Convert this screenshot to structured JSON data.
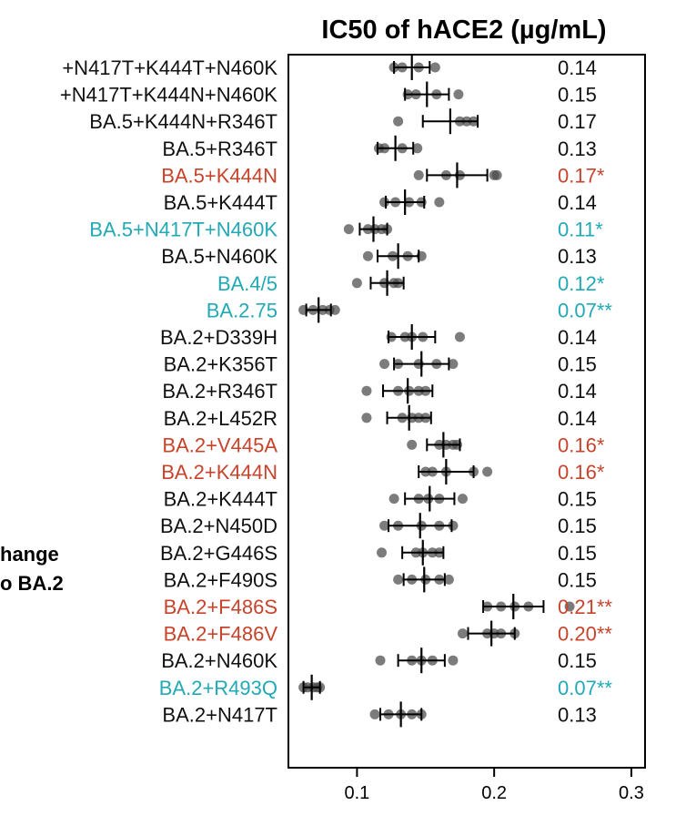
{
  "chart_data": {
    "type": "scatter",
    "title": "IC50 of hACE2 (µg/mL)",
    "side_label_lines": [
      "hange",
      "o BA.2"
    ],
    "xlim": [
      0.05,
      0.31
    ],
    "xticks": [
      0.1,
      0.2,
      0.3
    ],
    "xtick_labels": [
      "0.1",
      "0.2",
      "0.3"
    ],
    "colors": {
      "black": "#111111",
      "red": "#c8432b",
      "cyan": "#22a9b6",
      "point": "#4a4a4a"
    },
    "rows": [
      {
        "label": "+N417T+K444T+N460K",
        "value_label": "0.14",
        "color": "black",
        "mean": 0.14,
        "err": 0.013,
        "points": [
          0.127,
          0.133,
          0.145,
          0.157
        ]
      },
      {
        "label": "+N417T+K444N+N460K",
        "value_label": "0.15",
        "color": "black",
        "mean": 0.151,
        "err": 0.016,
        "points": [
          0.137,
          0.143,
          0.158,
          0.174
        ]
      },
      {
        "label": "BA.5+K444N+R346T",
        "value_label": "0.17",
        "color": "black",
        "mean": 0.168,
        "err": 0.02,
        "points": [
          0.13,
          0.175,
          0.18,
          0.185
        ]
      },
      {
        "label": "BA.5+R346T",
        "value_label": "0.13",
        "color": "black",
        "mean": 0.128,
        "err": 0.013,
        "points": [
          0.116,
          0.12,
          0.133,
          0.144
        ]
      },
      {
        "label": "BA.5+K444N",
        "value_label": "0.17*",
        "color": "red",
        "mean": 0.173,
        "err": 0.022,
        "points": [
          0.145,
          0.165,
          0.175,
          0.2,
          0.202
        ]
      },
      {
        "label": "BA.5+K444T",
        "value_label": "0.14",
        "color": "black",
        "mean": 0.135,
        "err": 0.014,
        "points": [
          0.12,
          0.128,
          0.138,
          0.147,
          0.16
        ]
      },
      {
        "label": "BA.5+N417T+N460K",
        "value_label": "0.11*",
        "color": "cyan",
        "mean": 0.112,
        "err": 0.01,
        "points": [
          0.094,
          0.108,
          0.113,
          0.118,
          0.122
        ]
      },
      {
        "label": "BA.5+N460K",
        "value_label": "0.13",
        "color": "black",
        "mean": 0.13,
        "err": 0.015,
        "points": [
          0.108,
          0.126,
          0.137,
          0.147
        ]
      },
      {
        "label": "BA.4/5",
        "value_label": "0.12*",
        "color": "cyan",
        "mean": 0.122,
        "err": 0.012,
        "points": [
          0.1,
          0.12,
          0.127,
          0.13
        ]
      },
      {
        "label": "BA.2.75",
        "value_label": "0.07**",
        "color": "cyan",
        "mean": 0.072,
        "err": 0.009,
        "points": [
          0.061,
          0.068,
          0.075,
          0.08,
          0.084
        ]
      },
      {
        "label": "BA.2+D339H",
        "value_label": "0.14",
        "color": "black",
        "mean": 0.14,
        "err": 0.017,
        "points": [
          0.125,
          0.135,
          0.14,
          0.148,
          0.175
        ]
      },
      {
        "label": "BA.2+K356T",
        "value_label": "0.15",
        "color": "black",
        "mean": 0.147,
        "err": 0.02,
        "points": [
          0.12,
          0.13,
          0.145,
          0.158,
          0.17
        ]
      },
      {
        "label": "BA.2+R346T",
        "value_label": "0.14",
        "color": "black",
        "mean": 0.137,
        "err": 0.018,
        "points": [
          0.107,
          0.13,
          0.138,
          0.145,
          0.15
        ]
      },
      {
        "label": "BA.2+L452R",
        "value_label": "0.14",
        "color": "black",
        "mean": 0.138,
        "err": 0.016,
        "points": [
          0.107,
          0.133,
          0.14,
          0.145,
          0.15
        ]
      },
      {
        "label": "BA.2+V445A",
        "value_label": "0.16*",
        "color": "red",
        "mean": 0.163,
        "err": 0.012,
        "points": [
          0.14,
          0.16,
          0.165,
          0.17,
          0.173
        ]
      },
      {
        "label": "BA.2+K444N",
        "value_label": "0.16*",
        "color": "red",
        "mean": 0.165,
        "err": 0.02,
        "points": [
          0.15,
          0.155,
          0.165,
          0.185,
          0.195
        ]
      },
      {
        "label": "BA.2+K444T",
        "value_label": "0.15",
        "color": "black",
        "mean": 0.153,
        "err": 0.018,
        "points": [
          0.127,
          0.145,
          0.152,
          0.16,
          0.177
        ]
      },
      {
        "label": "BA.2+N450D",
        "value_label": "0.15",
        "color": "black",
        "mean": 0.146,
        "err": 0.023,
        "points": [
          0.12,
          0.13,
          0.147,
          0.16,
          0.17
        ]
      },
      {
        "label": "BA.2+G446S",
        "value_label": "0.15",
        "color": "black",
        "mean": 0.148,
        "err": 0.015,
        "points": [
          0.118,
          0.143,
          0.148,
          0.155,
          0.16
        ]
      },
      {
        "label": "BA.2+F490S",
        "value_label": "0.15",
        "color": "black",
        "mean": 0.149,
        "err": 0.015,
        "points": [
          0.13,
          0.14,
          0.15,
          0.16,
          0.167
        ]
      },
      {
        "label": "BA.2+F486S",
        "value_label": "0.21**",
        "color": "red",
        "mean": 0.214,
        "err": 0.022,
        "points": [
          0.195,
          0.205,
          0.215,
          0.225,
          0.255
        ]
      },
      {
        "label": "BA.2+F486V",
        "value_label": "0.20**",
        "color": "red",
        "mean": 0.198,
        "err": 0.017,
        "points": [
          0.177,
          0.195,
          0.2,
          0.205,
          0.215
        ]
      },
      {
        "label": "BA.2+N460K",
        "value_label": "0.15",
        "color": "black",
        "mean": 0.147,
        "err": 0.017,
        "points": [
          0.117,
          0.14,
          0.147,
          0.155,
          0.17
        ]
      },
      {
        "label": "BA.2+R493Q",
        "value_label": "0.07**",
        "color": "cyan",
        "mean": 0.067,
        "err": 0.006,
        "points": [
          0.061,
          0.064,
          0.068,
          0.071,
          0.073
        ]
      },
      {
        "label": "BA.2+N417T",
        "value_label": "0.13",
        "color": "black",
        "mean": 0.132,
        "err": 0.015,
        "points": [
          0.113,
          0.123,
          0.132,
          0.14,
          0.147
        ]
      }
    ]
  }
}
